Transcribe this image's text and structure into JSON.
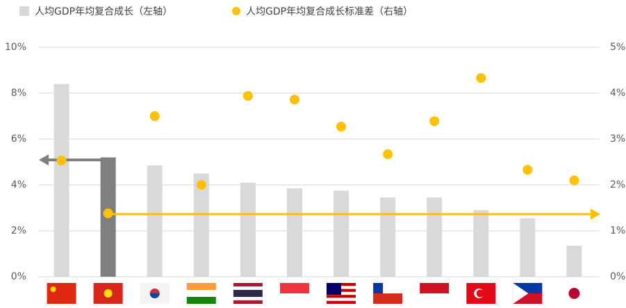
{
  "chart_data": {
    "type": "bar",
    "categories": [
      null,
      null,
      null,
      null,
      null,
      null,
      null,
      null,
      null,
      null,
      null,
      null
    ],
    "series": [
      {
        "name": "人均GDP年均复合成长（左轴）",
        "color": "#d9d9d9",
        "colors": [
          "#d9d9d9",
          "#7f7f7f",
          "#d9d9d9",
          "#d9d9d9",
          "#d9d9d9",
          "#d9d9d9",
          "#d9d9d9",
          "#d9d9d9",
          "#d9d9d9",
          "#d9d9d9",
          "#d9d9d9",
          "#d9d9d9"
        ],
        "values": [
          8.4,
          5.2,
          4.85,
          4.5,
          4.1,
          3.85,
          3.75,
          3.45,
          3.45,
          2.9,
          2.55,
          1.35
        ]
      },
      {
        "name": "人均GDP年均复合成长标准差（右轴）",
        "color": "#ffc000",
        "axis": "y2",
        "type": "scatter",
        "values": [
          2.53,
          1.38,
          3.5,
          2.0,
          3.94,
          3.86,
          3.27,
          2.67,
          3.39,
          4.33,
          2.33,
          2.1
        ]
      }
    ],
    "ylim": [
      0,
      10
    ],
    "yticks": [
      {
        "value": 0,
        "label": "0%"
      },
      {
        "value": 2,
        "label": "2%"
      },
      {
        "value": 4,
        "label": "4%"
      },
      {
        "value": 6,
        "label": "6%"
      },
      {
        "value": 8,
        "label": "8%"
      },
      {
        "value": 10,
        "label": "10%"
      }
    ],
    "y2lim": [
      0,
      5
    ],
    "y2ticks": [
      {
        "value": 0,
        "label": "0%"
      },
      {
        "value": 1,
        "label": "1%"
      },
      {
        "value": 2,
        "label": "2%"
      },
      {
        "value": 3,
        "label": "3%"
      },
      {
        "value": 4,
        "label": "4%"
      },
      {
        "value": 5,
        "label": "5%"
      }
    ],
    "grid": true
  }
}
